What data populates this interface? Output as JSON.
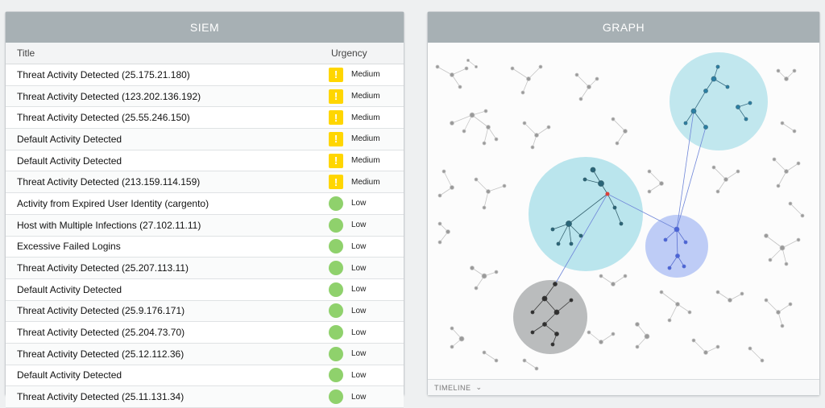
{
  "siem": {
    "title": "SIEM",
    "columns": {
      "title": "Title",
      "urgency": "Urgency"
    },
    "rows": [
      {
        "title": "Threat Activity Detected (25.175.21.180)",
        "urgency": "Medium",
        "level": "medium"
      },
      {
        "title": "Threat Activity Detected (123.202.136.192)",
        "urgency": "Medium",
        "level": "medium"
      },
      {
        "title": "Threat Activity Detected (25.55.246.150)",
        "urgency": "Medium",
        "level": "medium"
      },
      {
        "title": "Default Activity Detected",
        "urgency": "Medium",
        "level": "medium"
      },
      {
        "title": "Default Activity Detected",
        "urgency": "Medium",
        "level": "medium"
      },
      {
        "title": "Threat Activity Detected (213.159.114.159)",
        "urgency": "Medium",
        "level": "medium"
      },
      {
        "title": "Activity from Expired User Identity (cargento)",
        "urgency": "Low",
        "level": "low"
      },
      {
        "title": "Host with Multiple Infections (27.102.11.11)",
        "urgency": "Low",
        "level": "low"
      },
      {
        "title": "Excessive Failed Logins",
        "urgency": "Low",
        "level": "low"
      },
      {
        "title": "Threat Activity Detected (25.207.113.11)",
        "urgency": "Low",
        "level": "low"
      },
      {
        "title": "Default Activity Detected",
        "urgency": "Low",
        "level": "low"
      },
      {
        "title": "Threat Activity Detected (25.9.176.171)",
        "urgency": "Low",
        "level": "low"
      },
      {
        "title": "Threat Activity Detected (25.204.73.70)",
        "urgency": "Low",
        "level": "low"
      },
      {
        "title": "Threat Activity Detected (25.12.112.36)",
        "urgency": "Low",
        "level": "low"
      },
      {
        "title": "Default Activity Detected",
        "urgency": "Low",
        "level": "low"
      },
      {
        "title": "Threat Activity Detected (25.11.131.34)",
        "urgency": "Low",
        "level": "low"
      }
    ],
    "medium_icon": "!",
    "colors": {
      "medium": "#ffd600",
      "low": "#8fd16c",
      "header": "#a7b0b4"
    }
  },
  "graph": {
    "title": "GRAPH",
    "timeline_label": "TIMELINE",
    "timeline_icon": "chevron-down-icon",
    "colors": {
      "cyan_cluster": "#aee0ea",
      "blue_cluster": "#b7c6f5",
      "gray_cluster": "#a9abac",
      "alert_node": "#d9413a"
    }
  }
}
